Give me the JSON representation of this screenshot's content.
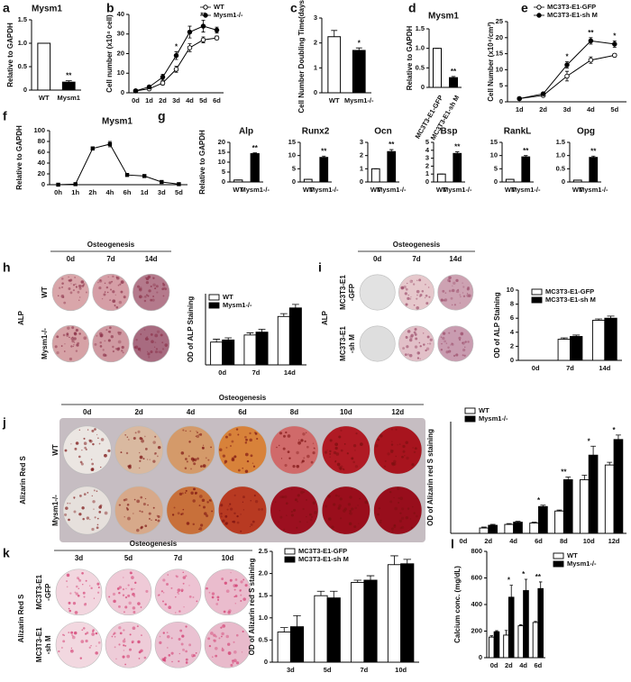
{
  "chart_data": [
    {
      "panel": "a",
      "type": "bar",
      "title": "Mysm1",
      "ylabel": "Relative to GAPDH",
      "categories": [
        "WT",
        "Mysm1"
      ],
      "values": [
        1,
        0.17
      ],
      "errors": [
        0,
        0.03
      ],
      "colors": [
        "#ffffff",
        "#000000"
      ],
      "significance": [
        null,
        "**"
      ],
      "ylim": [
        0,
        1.5
      ],
      "yticks": [
        0,
        0.5,
        {
          "value": 1,
          "label": "1.0"
        },
        1.5
      ]
    },
    {
      "panel": "b",
      "type": "line",
      "ylabel": "Cell number (x10⁴ cell)",
      "categories": [
        "0d",
        "1d",
        "2d",
        "3d",
        "4d",
        "5d",
        "6d"
      ],
      "series": [
        {
          "name": "WT",
          "color": "#000000",
          "marker": "open",
          "values": [
            1,
            2,
            5,
            12,
            23,
            27,
            28
          ],
          "errors": [
            0.5,
            0.5,
            1,
            1.5,
            2,
            1.5,
            1
          ]
        },
        {
          "name": "Mysm1-/-",
          "color": "#000000",
          "marker": "filled",
          "values": [
            1,
            3,
            8,
            19,
            31,
            34,
            32
          ],
          "errors": [
            0.5,
            0.5,
            1.5,
            2,
            3,
            3,
            1.5
          ]
        }
      ],
      "significance": [
        null,
        null,
        null,
        "*",
        null,
        "**",
        null
      ],
      "ylim": [
        0,
        40
      ],
      "yticks": [
        0,
        10,
        20,
        30,
        40
      ]
    },
    {
      "panel": "c",
      "type": "bar",
      "ylabel": "Cell Number Doubling Time(days)",
      "categories": [
        "WT",
        "Mysm1-/-"
      ],
      "values": [
        2.25,
        1.7
      ],
      "errors": [
        0.25,
        0.1
      ],
      "colors": [
        "#ffffff",
        "#000000"
      ],
      "significance": [
        null,
        "*"
      ],
      "ylim": [
        0,
        3
      ],
      "yticks": [
        0,
        1,
        2,
        3
      ]
    },
    {
      "panel": "d",
      "type": "bar",
      "title": "Mysm1",
      "ylabel": "Relative to GAPDH",
      "categories": [
        "MC3T3-E1-GFP",
        "MC3T3-E1-sh M"
      ],
      "values": [
        1,
        0.25
      ],
      "errors": [
        0,
        0.03
      ],
      "colors": [
        "#ffffff",
        "#000000"
      ],
      "significance": [
        null,
        "**"
      ],
      "ylim": [
        0,
        1.5
      ],
      "yticks": [
        0,
        0.5,
        {
          "value": 1,
          "label": "1.0"
        },
        1.5
      ]
    },
    {
      "panel": "e",
      "type": "line",
      "ylabel": "Cell Number (x10⁴/cm²)",
      "categories": [
        "1d",
        "2d",
        "3d",
        "4d",
        "5d"
      ],
      "series": [
        {
          "name": "MC3T3-E1-GFP",
          "color": "#000000",
          "marker": "open",
          "values": [
            1,
            2,
            8,
            13,
            14.5
          ],
          "errors": [
            0.3,
            0.3,
            1.5,
            1,
            0.5
          ]
        },
        {
          "name": "MC3T3-E1-sh M",
          "color": "#000000",
          "marker": "filled",
          "values": [
            1,
            2.5,
            11.5,
            19,
            18
          ],
          "errors": [
            0.3,
            0.3,
            1,
            1,
            1
          ]
        }
      ],
      "significance": [
        null,
        null,
        "*",
        "**",
        "*"
      ],
      "ylim": [
        0,
        25
      ],
      "yticks": [
        0,
        5,
        10,
        15,
        20,
        25
      ]
    },
    {
      "panel": "f",
      "type": "line",
      "title": "Mysm1",
      "ylabel": "Relative to GAPDH",
      "categories": [
        "0h",
        "1h",
        "2h",
        "4h",
        "6h",
        "1d",
        "3d",
        "5d"
      ],
      "series": [
        {
          "color": "#000000",
          "marker": "square",
          "values": [
            0,
            1,
            67,
            75,
            18,
            16,
            5,
            1
          ],
          "errors": [
            0,
            0.5,
            3,
            5,
            2,
            2,
            1,
            0.5
          ]
        }
      ],
      "ylim": [
        0,
        100
      ],
      "yticks": [
        0,
        20,
        40,
        60,
        80,
        100
      ]
    },
    {
      "panel": "g",
      "type": "bar",
      "title": "Alp",
      "ylabel": "Relative to GAPDH",
      "categories": [
        "WT",
        "Mysm1-/-"
      ],
      "values": [
        1,
        14.3
      ],
      "errors": [
        0,
        0.4
      ],
      "colors": [
        "#ffffff",
        "#000000"
      ],
      "significance": [
        null,
        "**"
      ],
      "ylim": [
        0,
        20
      ],
      "yticks": [
        0,
        5,
        10,
        15,
        20
      ]
    },
    {
      "type": "bar",
      "title": "Runx2",
      "categories": [
        "WT",
        "Mysm1-/-"
      ],
      "values": [
        1,
        9.3
      ],
      "errors": [
        0,
        0.5
      ],
      "colors": [
        "#ffffff",
        "#000000"
      ],
      "significance": [
        null,
        "**"
      ],
      "ylim": [
        0,
        15
      ],
      "yticks": [
        0,
        5,
        10,
        15
      ]
    },
    {
      "type": "bar",
      "title": "Ocn",
      "categories": [
        "WT",
        "Mysm1-/-"
      ],
      "values": [
        1,
        2.3
      ],
      "errors": [
        0,
        0.15
      ],
      "colors": [
        "#ffffff",
        "#000000"
      ],
      "significance": [
        null,
        "**"
      ],
      "ylim": [
        0,
        3
      ],
      "yticks": [
        0,
        1,
        2,
        3
      ]
    },
    {
      "type": "bar",
      "title": "Bsp",
      "categories": [
        "WT",
        "Mysm1-/-"
      ],
      "values": [
        1,
        3.6
      ],
      "errors": [
        0,
        0.2
      ],
      "colors": [
        "#ffffff",
        "#000000"
      ],
      "significance": [
        null,
        "**"
      ],
      "ylim": [
        0,
        5
      ],
      "yticks": [
        0,
        1,
        2,
        3,
        4,
        5
      ]
    },
    {
      "type": "bar",
      "title": "RankL",
      "categories": [
        "WT",
        "Mysm1-/-"
      ],
      "values": [
        1,
        9.5
      ],
      "errors": [
        0,
        0.5
      ],
      "colors": [
        "#ffffff",
        "#000000"
      ],
      "significance": [
        null,
        "**"
      ],
      "ylim": [
        0,
        15
      ],
      "yticks": [
        0,
        5,
        10,
        15
      ]
    },
    {
      "type": "bar",
      "title": "Opg",
      "categories": [
        "WT",
        "Mysm1-/-"
      ],
      "values": [
        0.07,
        0.93
      ],
      "errors": [
        0,
        0.05
      ],
      "colors": [
        "#ffffff",
        "#000000"
      ],
      "significance": [
        null,
        "**"
      ],
      "ylim": [
        0,
        1.5
      ],
      "yticks": [
        0,
        0.5,
        {
          "value": 1,
          "label": "1.0"
        },
        1.5
      ]
    },
    {
      "panel": "h",
      "type": "bar",
      "photo": {
        "title": "Osteogenesis",
        "columns": [
          "0d",
          "7d",
          "14d"
        ],
        "rows": [
          [
            "WT"
          ],
          [
            "Mysm1-/-"
          ]
        ],
        "stain": "ALP"
      },
      "ylabel": "OD of ALP Staining",
      "categories": [
        "0d",
        "7d",
        "14d"
      ],
      "series": [
        {
          "name": "WT",
          "color": "#ffffff",
          "values": [
            3.2,
            4.2,
            6.8
          ],
          "errors": [
            0.4,
            0.3,
            0.4
          ]
        },
        {
          "name": "Mysm1-/-",
          "color": "#000000",
          "values": [
            3.5,
            4.6,
            8.0
          ],
          "errors": [
            0.3,
            0.4,
            0.5
          ]
        }
      ],
      "ylim": [
        0,
        10
      ]
    },
    {
      "panel": "i",
      "type": "bar",
      "photo": {
        "title": "Osteogenesis",
        "columns": [
          "0d",
          "7d",
          "14d"
        ],
        "rows": [
          [
            "MC3T3-E1",
            "-GFP"
          ],
          [
            "MC3T3-E1",
            "-sh M"
          ]
        ],
        "stain": "ALP"
      },
      "ylabel": "OD of ALP Staining",
      "categories": [
        "0d",
        "7d",
        "14d"
      ],
      "series": [
        {
          "name": "MC3T3-E1-GFP",
          "color": "#ffffff",
          "values": [
            0,
            3,
            5.7
          ],
          "errors": [
            0,
            0.2,
            0.2
          ]
        },
        {
          "name": "MC3T3-E1-sh M",
          "color": "#000000",
          "values": [
            0,
            3.4,
            6.0
          ],
          "errors": [
            0,
            0.2,
            0.3
          ]
        }
      ],
      "ylim": [
        0,
        10
      ],
      "yticks": [
        0,
        2,
        4,
        6,
        8,
        10
      ]
    },
    {
      "panel": "j",
      "type": "bar",
      "photo": {
        "title": "Osteogenesis",
        "columns": [
          "0d",
          "2d",
          "4d",
          "6d",
          "8d",
          "10d",
          "12d"
        ],
        "rows": [
          [
            "WT"
          ],
          [
            "Mysm1-/-"
          ]
        ],
        "stain": "Alizarin Red S"
      },
      "ylabel": "OD of Alizarin red S staining",
      "categories": [
        "0d",
        "2d",
        "4d",
        "6d",
        "8d",
        "10d",
        "12d"
      ],
      "series": [
        {
          "name": "WT",
          "color": "#ffffff",
          "values": [
            0,
            1.2,
            2,
            2.3,
            5,
            12,
            15.3
          ],
          "errors": [
            0,
            0.2,
            0.2,
            0.2,
            0.2,
            1,
            0.6
          ]
        },
        {
          "name": "Mysm1-/-",
          "color": "#000000",
          "values": [
            0,
            1.8,
            2.5,
            6,
            12,
            17.5,
            21
          ],
          "errors": [
            0,
            0.2,
            0.2,
            0.3,
            0.6,
            2,
            1
          ]
        }
      ],
      "significance": [
        null,
        null,
        null,
        "*",
        "**",
        "*",
        "*"
      ],
      "ylim": [
        0,
        25
      ]
    },
    {
      "panel": "k",
      "type": "bar",
      "photo": {
        "title": "Osteogenesis",
        "columns": [
          "3d",
          "5d",
          "7d",
          "10d"
        ],
        "rows": [
          [
            "MC3T3-E1",
            "-GFP"
          ],
          [
            "MC3T3-E1",
            "-sh M"
          ]
        ],
        "stain": "Alizarin Red S"
      },
      "ylabel": "OD of Alizarin red S staining",
      "categories": [
        "3d",
        "5d",
        "7d",
        "10d"
      ],
      "series": [
        {
          "name": "MC3T3-E1-GFP",
          "color": "#ffffff",
          "values": [
            0.68,
            1.5,
            1.8,
            2.2
          ],
          "errors": [
            0.1,
            0.1,
            0.05,
            0.2
          ]
        },
        {
          "name": "MC3T3-E1-sh M",
          "color": "#000000",
          "values": [
            0.8,
            1.45,
            1.85,
            2.22
          ],
          "errors": [
            0.25,
            0.15,
            0.1,
            0.1
          ]
        }
      ],
      "ylim": [
        0,
        2.5
      ],
      "yticks": [
        0,
        0.5,
        {
          "value": 1,
          "label": "1.0"
        },
        1.5,
        {
          "value": 2,
          "label": "2.0"
        },
        2.5
      ]
    },
    {
      "panel": "l",
      "type": "bar",
      "ylabel": "Calcium conc. (mg/dL)",
      "categories": [
        "0d",
        "2d",
        "4d",
        "6d"
      ],
      "series": [
        {
          "name": "WT",
          "color": "#ffffff",
          "values": [
            155,
            170,
            240,
            265
          ],
          "errors": [
            10,
            35,
            8,
            8
          ]
        },
        {
          "name": "Mysm1-/-",
          "color": "#000000",
          "values": [
            195,
            455,
            505,
            520
          ],
          "errors": [
            8,
            90,
            85,
            50
          ]
        }
      ],
      "significance": [
        null,
        "*",
        "*",
        "**"
      ],
      "ylim": [
        0,
        800
      ],
      "yticks": [
        0,
        200,
        400,
        600,
        800
      ]
    }
  ]
}
